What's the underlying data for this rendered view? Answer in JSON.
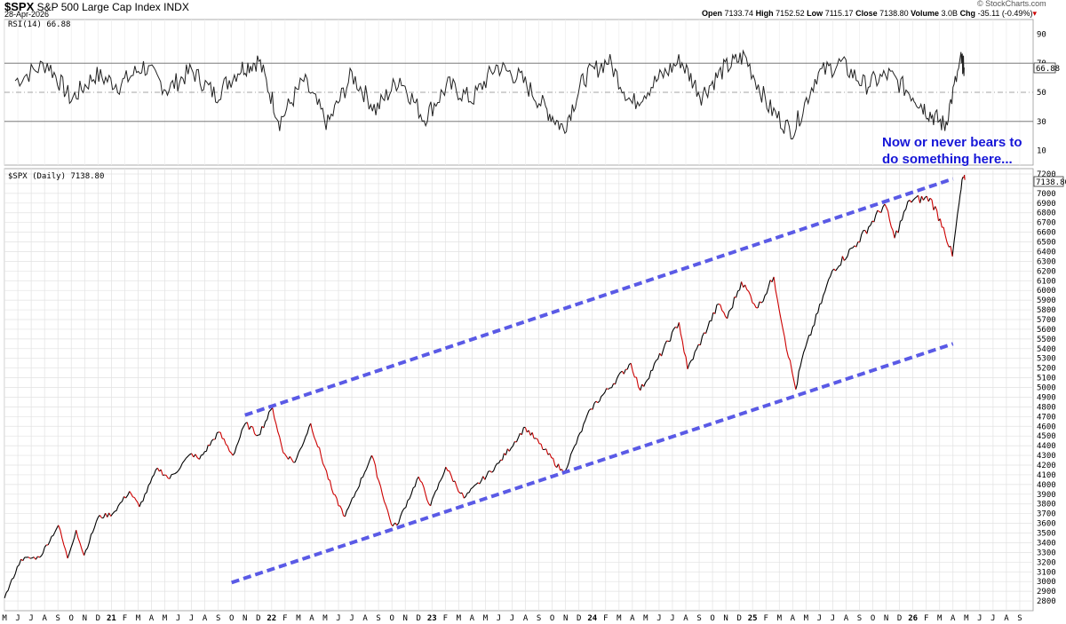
{
  "header": {
    "symbol": "$SPX",
    "name": "S&P 500 Large Cap Index",
    "exchange": "INDX",
    "date": "28-Apr-2026",
    "open_label": "Open",
    "open": "7133.74",
    "high_label": "High",
    "high": "7152.52",
    "low_label": "Low",
    "low": "7115.17",
    "close_label": "Close",
    "close": "7138.80",
    "volume_label": "Volume",
    "volume": "3.0B",
    "chg_label": "Chg",
    "chg": "-35.11 (-0.49%)",
    "watermark": "© StockCharts.com"
  },
  "colors": {
    "up": "#000000",
    "down": "#cc0000",
    "trend": "#5a5ae6",
    "annotation": "#1616d8",
    "rsi": "#000000",
    "rsi_fill": "#2e8b2e"
  },
  "chart_data": [
    {
      "type": "line",
      "title": "RSI(14) 66.88",
      "series": [
        {
          "name": "RSI(14)",
          "last": 66.88
        }
      ],
      "ylim": [
        0,
        100
      ],
      "y_ticks": [
        10,
        30,
        50,
        70,
        90
      ],
      "reference_lines": [
        30,
        50,
        70
      ],
      "last_value_label": "66.88",
      "x": [
        2020.4,
        2020.6,
        2020.75,
        2020.9,
        2021.05,
        2021.2,
        2021.35,
        2021.5,
        2021.65,
        2021.8,
        2021.92,
        2022.05,
        2022.2,
        2022.35,
        2022.5,
        2022.65,
        2022.8,
        2022.95,
        2023.1,
        2023.25,
        2023.4,
        2023.55,
        2023.7,
        2023.82,
        2023.95,
        2024.1,
        2024.25,
        2024.4,
        2024.55,
        2024.68,
        2024.82,
        2024.95,
        2025.1,
        2025.25,
        2025.4,
        2025.55,
        2025.7,
        2025.85,
        2026.0,
        2026.1,
        2026.2,
        2026.3,
        2026.32
      ],
      "values": [
        58,
        70,
        45,
        62,
        55,
        68,
        52,
        65,
        48,
        66,
        72,
        30,
        58,
        28,
        62,
        38,
        60,
        32,
        55,
        45,
        68,
        60,
        40,
        25,
        60,
        72,
        42,
        58,
        72,
        48,
        66,
        75,
        40,
        22,
        62,
        70,
        55,
        62,
        48,
        36,
        27,
        72,
        67
      ]
    },
    {
      "type": "line",
      "title": "$SPX (Daily) 7138.80",
      "series": [
        {
          "name": "$SPX (Daily)",
          "last": 7138.8
        }
      ],
      "ylim": [
        2700,
        7200
      ],
      "y_ticks": [
        2800,
        2900,
        3000,
        3100,
        3200,
        3300,
        3400,
        3500,
        3600,
        3700,
        3800,
        3900,
        4000,
        4100,
        4200,
        4300,
        4400,
        4500,
        4600,
        4700,
        4800,
        4900,
        5000,
        5100,
        5200,
        5300,
        5400,
        5500,
        5600,
        5700,
        5800,
        5900,
        6000,
        6100,
        6200,
        6300,
        6400,
        6500,
        6600,
        6700,
        6800,
        6900,
        7000,
        7100,
        7200
      ],
      "last_value_label": "7138.80",
      "x_ticks": [
        "M",
        "J",
        "J",
        "A",
        "S",
        "O",
        "N",
        "D",
        "21",
        "F",
        "M",
        "A",
        "M",
        "J",
        "J",
        "A",
        "S",
        "O",
        "N",
        "D",
        "22",
        "F",
        "M",
        "A",
        "M",
        "J",
        "J",
        "A",
        "S",
        "O",
        "N",
        "D",
        "23",
        "F",
        "M",
        "A",
        "M",
        "J",
        "J",
        "A",
        "S",
        "O",
        "N",
        "D",
        "24",
        "F",
        "M",
        "A",
        "M",
        "J",
        "J",
        "A",
        "S",
        "O",
        "N",
        "D",
        "25",
        "F",
        "M",
        "A",
        "M",
        "J",
        "J",
        "A",
        "S",
        "O",
        "N",
        "D",
        "26",
        "F",
        "M",
        "A",
        "M",
        "J",
        "J",
        "A",
        "S"
      ],
      "x_range": [
        "2020-05",
        "2026-09"
      ],
      "price_points": [
        [
          "2020-05-01",
          2830
        ],
        [
          "2020-06-08",
          3230
        ],
        [
          "2020-07-20",
          3250
        ],
        [
          "2020-09-02",
          3580
        ],
        [
          "2020-09-23",
          3240
        ],
        [
          "2020-10-12",
          3530
        ],
        [
          "2020-10-30",
          3270
        ],
        [
          "2020-12-01",
          3660
        ],
        [
          "2021-01-04",
          3700
        ],
        [
          "2021-02-12",
          3930
        ],
        [
          "2021-03-04",
          3770
        ],
        [
          "2021-04-15",
          4170
        ],
        [
          "2021-05-12",
          4060
        ],
        [
          "2021-07-01",
          4320
        ],
        [
          "2021-07-19",
          4260
        ],
        [
          "2021-09-02",
          4540
        ],
        [
          "2021-10-04",
          4300
        ],
        [
          "2021-11-02",
          4630
        ],
        [
          "2021-12-01",
          4510
        ],
        [
          "2022-01-03",
          4790
        ],
        [
          "2022-01-27",
          4330
        ],
        [
          "2022-02-24",
          4230
        ],
        [
          "2022-03-29",
          4630
        ],
        [
          "2022-05-20",
          3900
        ],
        [
          "2022-06-16",
          3670
        ],
        [
          "2022-08-16",
          4300
        ],
        [
          "2022-09-30",
          3590
        ],
        [
          "2022-10-12",
          3580
        ],
        [
          "2022-12-01",
          4080
        ],
        [
          "2022-12-28",
          3780
        ],
        [
          "2023-02-02",
          4180
        ],
        [
          "2023-03-13",
          3860
        ],
        [
          "2023-06-01",
          4220
        ],
        [
          "2023-07-31",
          4590
        ],
        [
          "2023-10-27",
          4120
        ],
        [
          "2023-12-28",
          4780
        ],
        [
          "2024-03-28",
          5250
        ],
        [
          "2024-04-19",
          4970
        ],
        [
          "2024-07-16",
          5670
        ],
        [
          "2024-08-05",
          5190
        ],
        [
          "2024-10-15",
          5860
        ],
        [
          "2024-11-04",
          5710
        ],
        [
          "2024-12-06",
          6090
        ],
        [
          "2025-01-13",
          5820
        ],
        [
          "2025-02-19",
          6140
        ],
        [
          "2025-03-13",
          5520
        ],
        [
          "2025-04-08",
          4980
        ],
        [
          "2025-04-22",
          5290
        ],
        [
          "2025-06-30",
          6200
        ],
        [
          "2025-08-28",
          6500
        ],
        [
          "2025-10-28",
          6890
        ],
        [
          "2025-11-20",
          6540
        ],
        [
          "2025-12-24",
          6930
        ],
        [
          "2026-02-10",
          6950
        ],
        [
          "2026-03-10",
          6650
        ],
        [
          "2026-03-30",
          6350
        ],
        [
          "2026-04-15",
          6900
        ],
        [
          "2026-04-24",
          7170
        ],
        [
          "2026-04-28",
          7138.8
        ]
      ],
      "trendlines": [
        {
          "name": "upper",
          "from": [
            "2021-11",
            4715
          ],
          "to": [
            "2026-04",
            7150
          ]
        },
        {
          "name": "lower",
          "from": [
            "2021-10",
            2990
          ],
          "to": [
            "2026-04",
            5450
          ]
        }
      ],
      "annotation": [
        "Now or never bears to",
        "do something here..."
      ]
    }
  ]
}
